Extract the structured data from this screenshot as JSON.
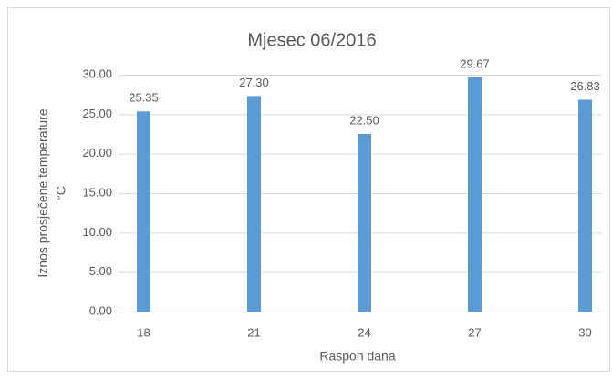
{
  "chart_data": {
    "type": "bar",
    "title": "Mjesec 06/2016",
    "x_label": "Raspon dana",
    "y_label": [
      "Iznos prosječene temperature",
      "°C"
    ],
    "categories": [
      "18",
      "21",
      "24",
      "27",
      "30"
    ],
    "values": [
      25.35,
      27.3,
      22.5,
      29.67,
      26.83
    ],
    "value_labels": [
      "25.35",
      "27.30",
      "22.50",
      "29.67",
      "26.83"
    ],
    "color": "#5b9bd5",
    "ylim": [
      0,
      30
    ],
    "yticks": [
      {
        "value": 0,
        "label": "0.00"
      },
      {
        "value": 5,
        "label": "5.00"
      },
      {
        "value": 10,
        "label": "10.00"
      },
      {
        "value": 15,
        "label": "15.00"
      },
      {
        "value": 20,
        "label": "20.00"
      },
      {
        "value": 25,
        "label": "25.00"
      },
      {
        "value": 30,
        "label": "30.00"
      }
    ],
    "grid": true
  }
}
